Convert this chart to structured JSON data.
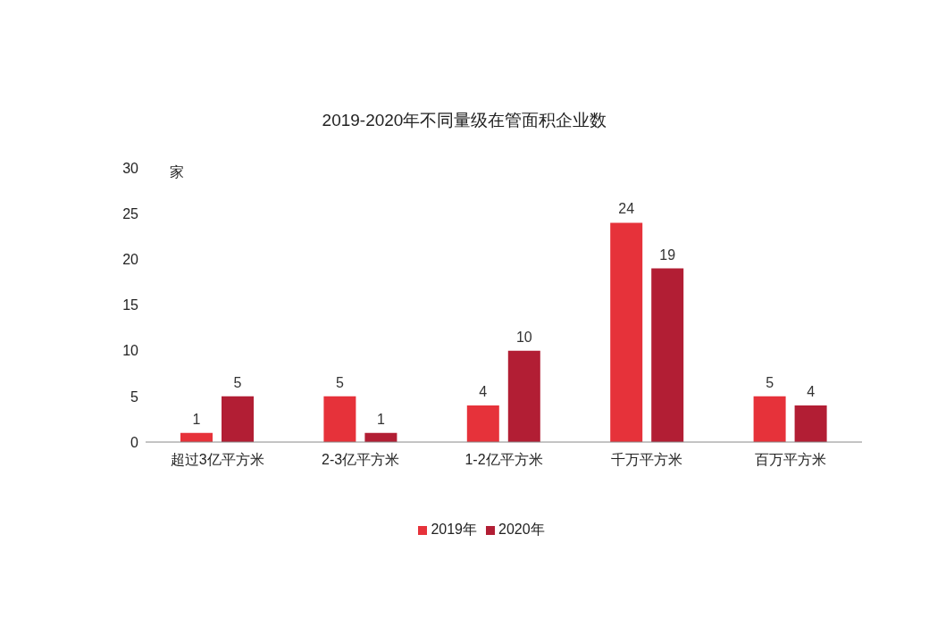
{
  "chart_data": {
    "type": "bar",
    "title": "2019-2020年不同量级在管面积企业数",
    "ylabel": "家",
    "categories": [
      "超过3亿平方米",
      "2-3亿平方米",
      "1-2亿平方米",
      "千万平方米",
      "百万平方米"
    ],
    "series": [
      {
        "name": "2019年",
        "color": "#e6323a",
        "values": [
          1,
          5,
          4,
          24,
          5
        ]
      },
      {
        "name": "2020年",
        "color": "#b21e34",
        "values": [
          5,
          1,
          10,
          19,
          4
        ]
      }
    ],
    "ylim": [
      0,
      30
    ],
    "yticks": [
      0,
      5,
      10,
      15,
      20,
      25,
      30
    ],
    "grid": false,
    "legend": "bottom",
    "data_labels": true
  }
}
